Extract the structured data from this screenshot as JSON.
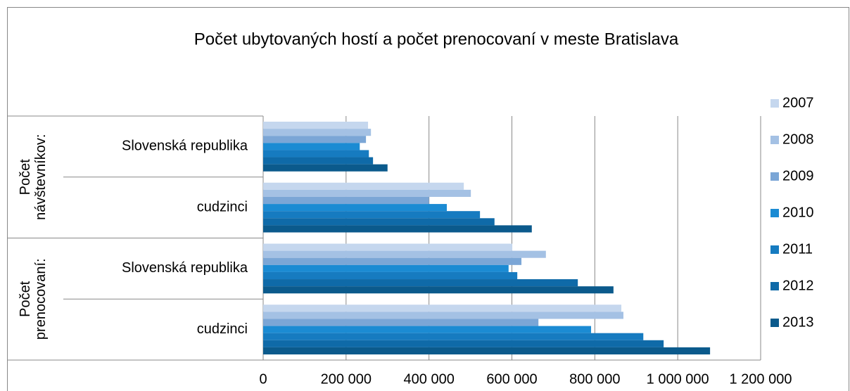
{
  "chart_data": {
    "type": "hbar",
    "title": "Počet ubytovaných hostí a počet prenocovaní v meste Bratislava",
    "category_groups": [
      {
        "name": "Počet návštevníkov:",
        "categories": [
          "Slovenská republika",
          "cudzinci"
        ]
      },
      {
        "name": "Počet prenocovaní:",
        "categories": [
          "Slovenská republika",
          "cudzinci"
        ]
      }
    ],
    "series": [
      {
        "name": "2007",
        "color": "#c5d7ee",
        "values": [
          253000,
          484000,
          601000,
          864000
        ]
      },
      {
        "name": "2008",
        "color": "#a4c1e4",
        "values": [
          260000,
          501000,
          682000,
          869000
        ]
      },
      {
        "name": "2009",
        "color": "#7ba6d6",
        "values": [
          248000,
          400000,
          623000,
          664000
        ]
      },
      {
        "name": "2010",
        "color": "#1b8bd3",
        "values": [
          233000,
          443000,
          592000,
          791000
        ]
      },
      {
        "name": "2011",
        "color": "#167bc0",
        "values": [
          255000,
          523000,
          613000,
          917000
        ]
      },
      {
        "name": "2012",
        "color": "#0f6aa8",
        "values": [
          265000,
          558000,
          759000,
          966000
        ]
      },
      {
        "name": "2013",
        "color": "#0b5a8c",
        "values": [
          300000,
          648000,
          845000,
          1078000
        ]
      }
    ],
    "xlim": [
      0,
      1200000
    ],
    "xticks": [
      0,
      {
        "value": 200000,
        "label": "200 000"
      },
      {
        "value": 400000,
        "label": "400 000"
      },
      {
        "value": 600000,
        "label": "600 000"
      },
      {
        "value": 800000,
        "label": "800 000"
      },
      {
        "value": 1000000,
        "label": "1 000 000"
      },
      {
        "value": 1200000,
        "label": "1 200 000"
      }
    ],
    "grid": true,
    "legend": "right"
  }
}
